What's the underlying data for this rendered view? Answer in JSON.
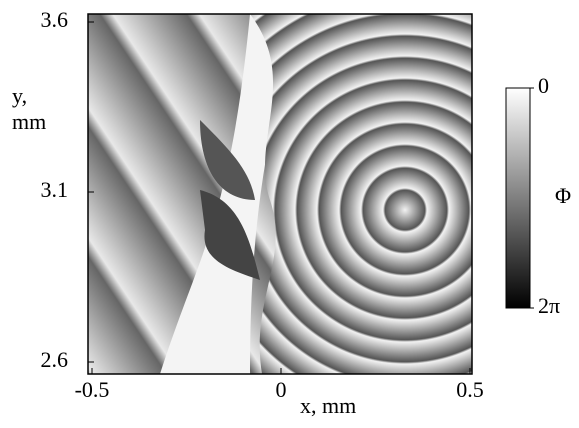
{
  "chart_data": {
    "type": "image",
    "xlabel": "x, mm",
    "ylabel": "y, mm",
    "xlim": [
      -0.5,
      0.5
    ],
    "xticks": [
      -0.5,
      0,
      0.5
    ],
    "ylim": [
      2.6,
      3.6
    ],
    "yticks": [
      2.6,
      3.1,
      3.6
    ],
    "colorbar": {
      "label": "Φ",
      "lim": [
        0,
        6.283185
      ],
      "ticks": [
        0,
        {
          "value": 6.283185,
          "label": "2π"
        }
      ]
    }
  }
}
